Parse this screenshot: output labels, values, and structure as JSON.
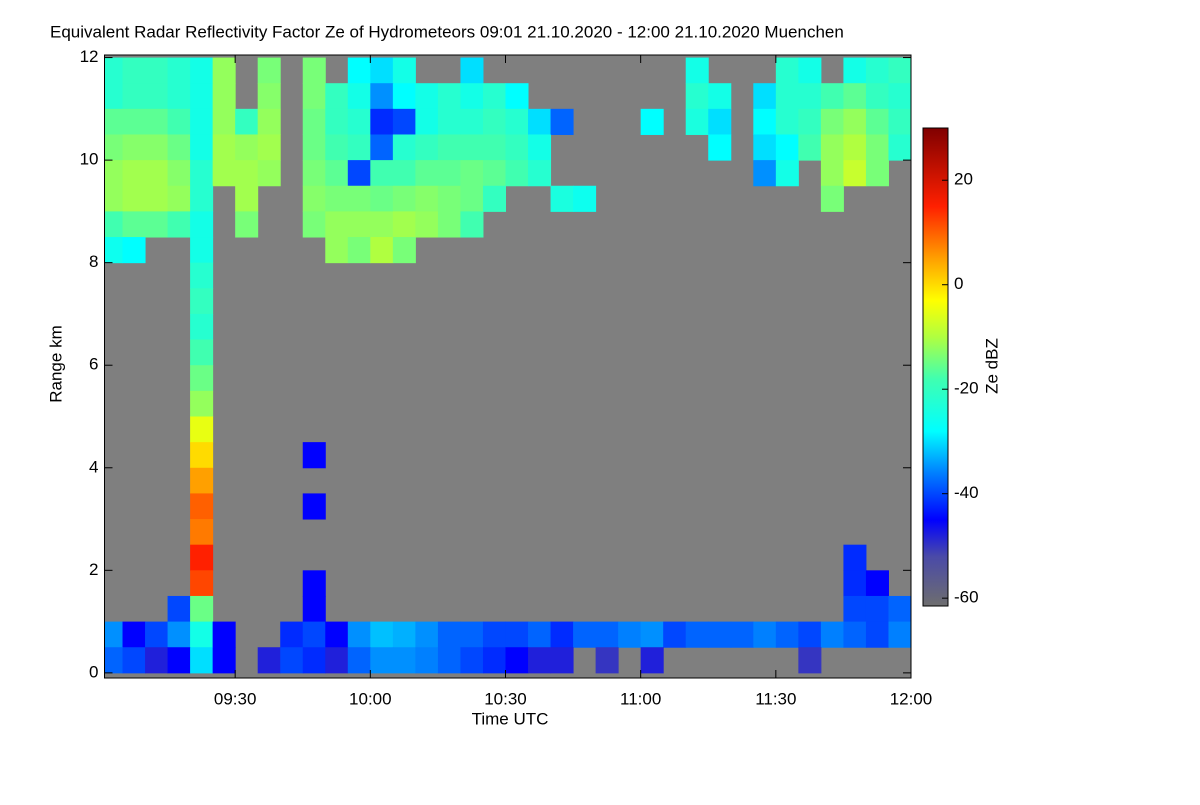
{
  "chart_data": {
    "type": "heatmap",
    "title": "Equivalent Radar Reflectivity Factor Ze of Hydrometeors   09:01 21.10.2020 - 12:00 21.10.2020 Muenchen",
    "x_label": "Time UTC",
    "y_label": "Range km",
    "colorbar_label": "Ze dBZ",
    "background": "#7f7f7f",
    "xlim": [
      541,
      720
    ],
    "xticks": [
      {
        "value": 570,
        "label": "09:30"
      },
      {
        "value": 600,
        "label": "10:00"
      },
      {
        "value": 630,
        "label": "10:30"
      },
      {
        "value": 660,
        "label": "11:00"
      },
      {
        "value": 690,
        "label": "11:30"
      },
      {
        "value": 720,
        "label": "12:00"
      }
    ],
    "ylim": [
      -0.1,
      12.05
    ],
    "yticks": [
      0,
      2,
      4,
      6,
      8,
      10,
      12
    ],
    "clim": [
      -61.5,
      30
    ],
    "cticks": [
      -60,
      -40,
      -20,
      0,
      20
    ],
    "colorscale": [
      [
        -61.5,
        "#6e6e6e"
      ],
      [
        -52,
        "#4a4aa8"
      ],
      [
        -45,
        "#0000ff"
      ],
      [
        -36,
        "#0080ff"
      ],
      [
        -28,
        "#00ffff"
      ],
      [
        -18,
        "#40ffb0"
      ],
      [
        -10,
        "#b0ff40"
      ],
      [
        -3,
        "#ffff00"
      ],
      [
        5,
        "#ffa000"
      ],
      [
        15,
        "#ff2000"
      ],
      [
        30,
        "#800000"
      ]
    ],
    "x": [
      542.5,
      547.5,
      552.5,
      557.5,
      562.5,
      567.5,
      572.5,
      577.5,
      582.5,
      587.5,
      592.5,
      597.5,
      602.5,
      607.5,
      612.5,
      617.5,
      622.5,
      627.5,
      632.5,
      637.5,
      642.5,
      647.5,
      652.5,
      657.5,
      662.5,
      667.5,
      672.5,
      677.5,
      682.5,
      687.5,
      692.5,
      697.5,
      702.5,
      707.5,
      712.5,
      717.5
    ],
    "y": [
      11.75,
      11.25,
      10.75,
      10.25,
      9.75,
      9.25,
      8.75,
      8.25,
      7.75,
      7.25,
      6.75,
      6.25,
      5.75,
      5.25,
      4.75,
      4.25,
      3.75,
      3.25,
      2.75,
      2.25,
      1.75,
      1.25,
      0.75,
      0.25
    ],
    "z": [
      [
        -22,
        -20,
        -20,
        -22,
        -25,
        -12,
        null,
        -14,
        null,
        -14,
        null,
        -28,
        -30,
        -25,
        null,
        null,
        -30,
        null,
        null,
        null,
        null,
        null,
        null,
        null,
        null,
        null,
        -25,
        null,
        null,
        null,
        -22,
        -25,
        null,
        -25,
        -22,
        -20
      ],
      [
        -22,
        -20,
        -20,
        -22,
        -25,
        -12,
        null,
        -13,
        null,
        -14,
        -20,
        -25,
        -35,
        -28,
        -25,
        -22,
        -25,
        -22,
        -28,
        null,
        null,
        null,
        null,
        null,
        null,
        null,
        -22,
        -25,
        null,
        -30,
        -22,
        -22,
        -18,
        -16,
        -20,
        -22
      ],
      [
        -16,
        -16,
        -16,
        -18,
        -25,
        -12,
        -20,
        -12,
        null,
        -15,
        -20,
        -22,
        -42,
        -40,
        -25,
        -22,
        -22,
        -20,
        -22,
        -30,
        -38,
        null,
        null,
        null,
        -28,
        null,
        -24,
        -30,
        null,
        -28,
        -22,
        -20,
        -14,
        -12,
        -16,
        -20
      ],
      [
        -14,
        -13,
        -13,
        -15,
        -25,
        -11,
        -12,
        -11,
        null,
        -15,
        -18,
        -20,
        -38,
        -22,
        -20,
        -18,
        -18,
        -18,
        -20,
        -25,
        null,
        null,
        null,
        null,
        null,
        null,
        null,
        -28,
        null,
        -30,
        -28,
        -18,
        -12,
        -10,
        -14,
        -22
      ],
      [
        -12,
        -11,
        -11,
        -13,
        -22,
        -11,
        -11,
        -12,
        null,
        -14,
        -16,
        -40,
        -18,
        -18,
        -16,
        -16,
        -15,
        -16,
        -18,
        -22,
        null,
        null,
        null,
        null,
        null,
        null,
        null,
        null,
        null,
        -35,
        -25,
        null,
        -12,
        -8,
        -14,
        null
      ],
      [
        -12,
        -11,
        -11,
        -12,
        -22,
        null,
        -11,
        null,
        null,
        -13,
        -14,
        -14,
        -15,
        -14,
        -13,
        -14,
        -15,
        -20,
        null,
        null,
        -24,
        -26,
        null,
        null,
        null,
        null,
        null,
        null,
        null,
        null,
        null,
        null,
        -14,
        null,
        null,
        null
      ],
      [
        -18,
        -16,
        -16,
        -18,
        -25,
        null,
        -14,
        null,
        null,
        -14,
        -12,
        -12,
        -12,
        -11,
        -12,
        -14,
        -18,
        null,
        null,
        null,
        null,
        null,
        null,
        null,
        null,
        null,
        null,
        null,
        null,
        null,
        null,
        null,
        null,
        null,
        null,
        null
      ],
      [
        -26,
        -28,
        null,
        null,
        -25,
        null,
        null,
        null,
        null,
        null,
        -12,
        -14,
        -10,
        -14,
        null,
        null,
        null,
        null,
        null,
        null,
        null,
        null,
        null,
        null,
        null,
        null,
        null,
        null,
        null,
        null,
        null,
        null,
        null,
        null,
        null,
        null
      ],
      [
        null,
        null,
        null,
        null,
        -22,
        null,
        null,
        null,
        null,
        null,
        null,
        null,
        null,
        null,
        null,
        null,
        null,
        null,
        null,
        null,
        null,
        null,
        null,
        null,
        null,
        null,
        null,
        null,
        null,
        null,
        null,
        null,
        null,
        null,
        null,
        null
      ],
      [
        null,
        null,
        null,
        null,
        -20,
        null,
        null,
        null,
        null,
        null,
        null,
        null,
        null,
        null,
        null,
        null,
        null,
        null,
        null,
        null,
        null,
        null,
        null,
        null,
        null,
        null,
        null,
        null,
        null,
        null,
        null,
        null,
        null,
        null,
        null,
        null
      ],
      [
        null,
        null,
        null,
        null,
        -22,
        null,
        null,
        null,
        null,
        null,
        null,
        null,
        null,
        null,
        null,
        null,
        null,
        null,
        null,
        null,
        null,
        null,
        null,
        null,
        null,
        null,
        null,
        null,
        null,
        null,
        null,
        null,
        null,
        null,
        null,
        null
      ],
      [
        null,
        null,
        null,
        null,
        -18,
        null,
        null,
        null,
        null,
        null,
        null,
        null,
        null,
        null,
        null,
        null,
        null,
        null,
        null,
        null,
        null,
        null,
        null,
        null,
        null,
        null,
        null,
        null,
        null,
        null,
        null,
        null,
        null,
        null,
        null,
        null
      ],
      [
        null,
        null,
        null,
        null,
        -15,
        null,
        null,
        null,
        null,
        null,
        null,
        null,
        null,
        null,
        null,
        null,
        null,
        null,
        null,
        null,
        null,
        null,
        null,
        null,
        null,
        null,
        null,
        null,
        null,
        null,
        null,
        null,
        null,
        null,
        null,
        null
      ],
      [
        null,
        null,
        null,
        null,
        -12,
        null,
        null,
        null,
        null,
        null,
        null,
        null,
        null,
        null,
        null,
        null,
        null,
        null,
        null,
        null,
        null,
        null,
        null,
        null,
        null,
        null,
        null,
        null,
        null,
        null,
        null,
        null,
        null,
        null,
        null,
        null
      ],
      [
        null,
        null,
        null,
        null,
        -5,
        null,
        null,
        null,
        null,
        null,
        null,
        null,
        null,
        null,
        null,
        null,
        null,
        null,
        null,
        null,
        null,
        null,
        null,
        null,
        null,
        null,
        null,
        null,
        null,
        null,
        null,
        null,
        null,
        null,
        null,
        null
      ],
      [
        null,
        null,
        null,
        null,
        0,
        null,
        null,
        null,
        null,
        -45,
        null,
        null,
        null,
        null,
        null,
        null,
        null,
        null,
        null,
        null,
        null,
        null,
        null,
        null,
        null,
        null,
        null,
        null,
        null,
        null,
        null,
        null,
        null,
        null,
        null,
        null
      ],
      [
        null,
        null,
        null,
        null,
        5,
        null,
        null,
        null,
        null,
        null,
        null,
        null,
        null,
        null,
        null,
        null,
        null,
        null,
        null,
        null,
        null,
        null,
        null,
        null,
        null,
        null,
        null,
        null,
        null,
        null,
        null,
        null,
        null,
        null,
        null,
        null
      ],
      [
        null,
        null,
        null,
        null,
        10,
        null,
        null,
        null,
        null,
        -45,
        null,
        null,
        null,
        null,
        null,
        null,
        null,
        null,
        null,
        null,
        null,
        null,
        null,
        null,
        null,
        null,
        null,
        null,
        null,
        null,
        null,
        null,
        null,
        null,
        null,
        null
      ],
      [
        null,
        null,
        null,
        null,
        8,
        null,
        null,
        null,
        null,
        null,
        null,
        null,
        null,
        null,
        null,
        null,
        null,
        null,
        null,
        null,
        null,
        null,
        null,
        null,
        null,
        null,
        null,
        null,
        null,
        null,
        null,
        null,
        null,
        null,
        null,
        null
      ],
      [
        null,
        null,
        null,
        null,
        15,
        null,
        null,
        null,
        null,
        null,
        null,
        null,
        null,
        null,
        null,
        null,
        null,
        null,
        null,
        null,
        null,
        null,
        null,
        null,
        null,
        null,
        null,
        null,
        null,
        null,
        null,
        null,
        null,
        -42,
        null,
        null
      ],
      [
        null,
        null,
        null,
        null,
        12,
        null,
        null,
        null,
        null,
        -45,
        null,
        null,
        null,
        null,
        null,
        null,
        null,
        null,
        null,
        null,
        null,
        null,
        null,
        null,
        null,
        null,
        null,
        null,
        null,
        null,
        null,
        null,
        null,
        -42,
        -45,
        null
      ],
      [
        null,
        null,
        null,
        -40,
        -15,
        null,
        null,
        null,
        null,
        -45,
        null,
        null,
        null,
        null,
        null,
        null,
        null,
        null,
        null,
        null,
        null,
        null,
        null,
        null,
        null,
        null,
        null,
        null,
        null,
        null,
        null,
        null,
        null,
        -40,
        -40,
        -38
      ],
      [
        -35,
        -45,
        -40,
        -35,
        -25,
        -45,
        null,
        null,
        -42,
        -40,
        -45,
        -35,
        -32,
        -33,
        -35,
        -38,
        -38,
        -40,
        -40,
        -38,
        -42,
        -38,
        -38,
        -36,
        -35,
        -40,
        -38,
        -38,
        -38,
        -36,
        -38,
        -40,
        -36,
        -38,
        -40,
        -36
      ],
      [
        -38,
        -40,
        -48,
        -45,
        -30,
        -45,
        null,
        -48,
        -40,
        -42,
        -48,
        -38,
        -35,
        -35,
        -36,
        -38,
        -40,
        -42,
        -45,
        -48,
        -48,
        null,
        -50,
        null,
        -48,
        null,
        null,
        null,
        null,
        null,
        null,
        -50,
        null,
        null,
        null,
        null
      ]
    ]
  }
}
